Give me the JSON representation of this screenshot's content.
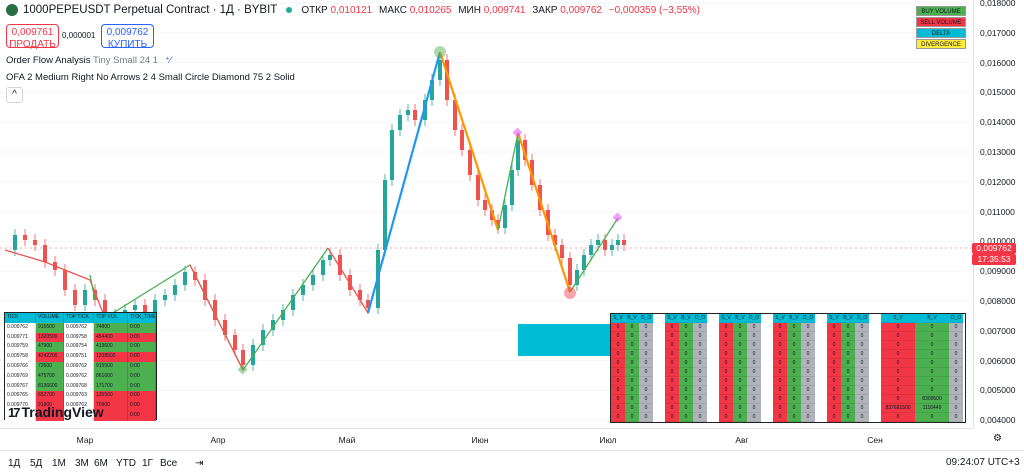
{
  "header": {
    "symbol": "1000PEPEUSDT Perpetual Contract · 1Д · BYBIT",
    "open_label": "ОТКР",
    "open": "0,010121",
    "high_label": "МАКС",
    "high": "0,010265",
    "low_label": "МИН",
    "low": "0,009741",
    "close_label": "ЗАКР",
    "close": "0,009762",
    "change": "−0,000359 (−3,55%)"
  },
  "trade": {
    "sell_price": "0,009761",
    "sell_label": "ПРОДАТЬ",
    "spread": "0,000001",
    "buy_price": "0,009762",
    "buy_label": "КУПИТЬ"
  },
  "indicators": {
    "ofa_name": "Order Flow Analysis",
    "ofa_params": "Tiny Small 24 1",
    "ofa2": "OFA 2 Medium Right No Arrows 2 4 Small Circle Diamond 75 2 Solid"
  },
  "legend": [
    {
      "label": "BUY VOLUME",
      "color": "#4caf50"
    },
    {
      "label": "SELL VOLUME",
      "color": "#f23645"
    },
    {
      "label": "DELTA",
      "color": "#00bcd4"
    },
    {
      "label": "DIVERGENCE",
      "color": "#ffeb3b"
    }
  ],
  "yaxis": [
    "0,018000",
    "0,017000",
    "0,016000",
    "0,015000",
    "0,014000",
    "0,013000",
    "0,012000",
    "0,011000",
    "0,010000",
    "0,009000",
    "0,008000",
    "0,007000",
    "0,006000",
    "0,005000",
    "0,004000"
  ],
  "price_tag": {
    "price": "0,009762",
    "countdown": "17:35:53",
    "color": "#f23645"
  },
  "xaxis": [
    "Мар",
    "Апр",
    "Май",
    "Июн",
    "Июл",
    "Авг",
    "Сен"
  ],
  "ranges": [
    "1Д",
    "5Д",
    "1М",
    "3М",
    "6М",
    "YTD",
    "1Г",
    "Все"
  ],
  "clock": "09:24:07 UTC+3",
  "logo": "TradingView",
  "left_table": {
    "headers": [
      "TICK",
      "VOLUME",
      "TOP TICK",
      "TOP VOL",
      "TICK_TIME"
    ],
    "rows": [
      [
        "0.009762",
        "915500",
        "0.009762",
        "74800",
        "0:00"
      ],
      [
        "0.009771",
        "1320500",
        "0.009758",
        "454400",
        "0:00"
      ],
      [
        "0.009759",
        "47900",
        "0.009754",
        "419600",
        "0:00"
      ],
      [
        "0.009758",
        "4242200",
        "0.009751",
        "1208500",
        "0:00"
      ],
      [
        "0.009766",
        "72600",
        "0.009762",
        "915500",
        "0:00"
      ],
      [
        "0.009769",
        "475700",
        "0.009762",
        "861600",
        "0:00"
      ],
      [
        "0.009767",
        "8136600",
        "0.009768",
        "171700",
        "0:00"
      ],
      [
        "0.009765",
        "652700",
        "0.009763",
        "135500",
        "0:00"
      ],
      [
        "0.009770",
        "91800",
        "0.009762",
        "70900",
        "0:00"
      ],
      [
        "",
        "",
        "",
        "",
        "0:00"
      ]
    ]
  },
  "right_table": {
    "headers": [
      "S_V",
      "B_V",
      "D_O",
      "S_V",
      "B_V",
      "D_O",
      "S_V",
      "B_V",
      "D_O",
      "S_V",
      "B_V",
      "D_O",
      "S_V",
      "B_V",
      "D_O",
      "S_V",
      "B_V",
      "D_O"
    ],
    "big_values": {
      "s": "837691500",
      "b": "1116440"
    },
    "mid_value": "8309500"
  }
}
